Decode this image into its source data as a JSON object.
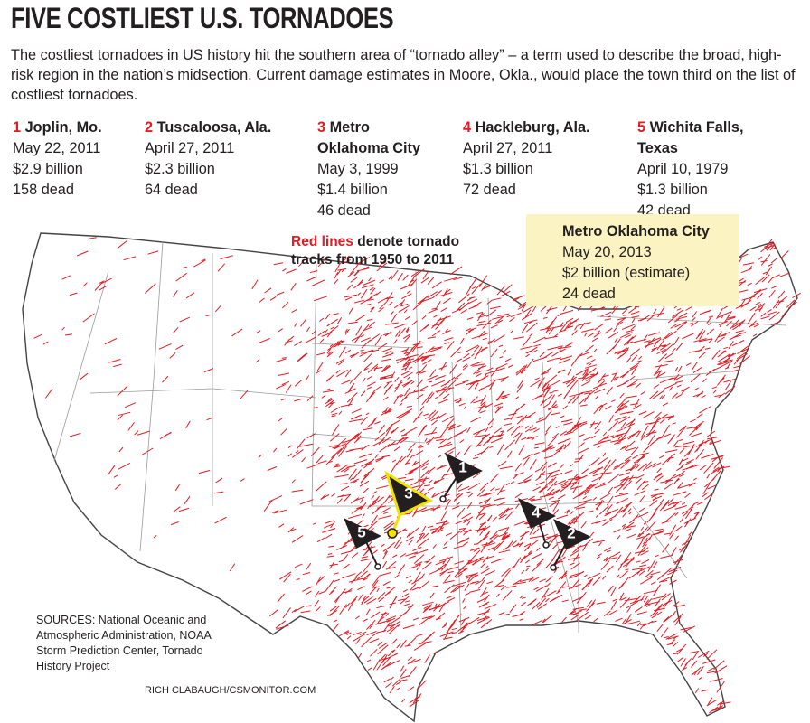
{
  "header": {
    "title": "FIVE COSTLIEST U.S. TORNADOES",
    "intro": "The costliest tornadoes in US history hit the southern area of “tornado alley” – a term used to describe the broad, high-risk region in the nation’s midsection. Current damage estimates in Moore, Okla., would place the town third on the list of costliest tornadoes."
  },
  "tornadoes": [
    {
      "rank": "1",
      "place": "Joplin, Mo.",
      "date": "May 22, 2011",
      "cost": "$2.9 billion",
      "deaths": "158 dead"
    },
    {
      "rank": "2",
      "place": "Tuscaloosa, Ala.",
      "date": "April 27, 2011",
      "cost": "$2.3 billion",
      "deaths": "64 dead"
    },
    {
      "rank": "3",
      "place": "Metro Oklahoma City",
      "date": "May 3, 1999",
      "cost": "$1.4 billion",
      "deaths": "46 dead"
    },
    {
      "rank": "4",
      "place": "Hackleburg, Ala.",
      "date": "April 27, 2011",
      "cost": "$1.3 billion",
      "deaths": "72 dead"
    },
    {
      "rank": "5",
      "place": "Wichita Falls, Texas",
      "date": "April 10, 1979",
      "cost": "$1.3 billion",
      "deaths": "42 dead"
    }
  ],
  "map": {
    "legend_highlight": "Red lines",
    "legend_text": "denote tornado tracks from 1950 to 2011",
    "callout": {
      "place": "Metro Oklahoma City",
      "date": "May 20, 2013",
      "cost": "$2 billion (estimate)",
      "deaths": "24 dead"
    }
  },
  "sources": "SOURCES: National Oceanic and Atmospheric Administration, NOAA Storm Prediction Center, Tornado History Project",
  "credit": "RICH CLABAUGH/CSMONITOR.COM"
}
